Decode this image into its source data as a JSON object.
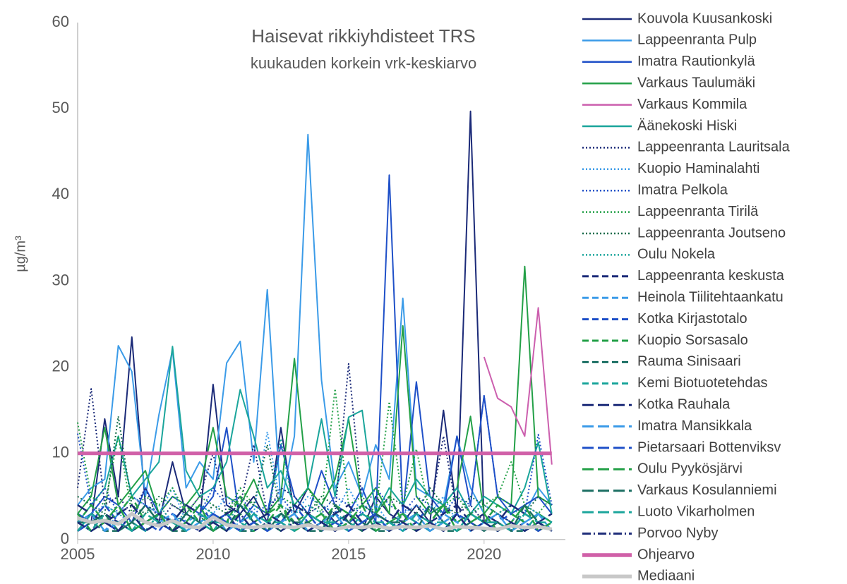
{
  "chart_data": {
    "type": "line",
    "title": "Haisevat rikkiyhdisteet TRS",
    "subtitle": "kuukauden korkein vrk-keskiarvo",
    "y_label": "µg/m³",
    "xlim": [
      2005,
      2023
    ],
    "xticks": [
      2005,
      2010,
      2015,
      2020
    ],
    "ylim": [
      0,
      60
    ],
    "yticks": [
      0,
      10,
      20,
      30,
      40,
      50,
      60
    ],
    "grid": false,
    "legend": "right",
    "x": [
      2005,
      2005.5,
      2006,
      2006.5,
      2007,
      2007.5,
      2008,
      2008.5,
      2009,
      2009.5,
      2010,
      2010.5,
      2011,
      2011.5,
      2012,
      2012.5,
      2013,
      2013.5,
      2014,
      2014.5,
      2015,
      2015.5,
      2016,
      2016.5,
      2017,
      2017.5,
      2018,
      2018.5,
      2019,
      2019.5,
      2020,
      2020.5,
      2021,
      2021.5,
      2022,
      2022.5
    ],
    "series": [
      {
        "name": "Kouvola Kuusankoski",
        "color": "#1b2a78",
        "style": "solid",
        "values": [
          3,
          2,
          14,
          5,
          23.5,
          4,
          2,
          9,
          3,
          2,
          18,
          4,
          3,
          5,
          2,
          13,
          3,
          6,
          4,
          2,
          3,
          1,
          5,
          3,
          2,
          4,
          2,
          15,
          3,
          49.7,
          2,
          3,
          2,
          1,
          2,
          1
        ]
      },
      {
        "name": "Lappeenranta Pulp",
        "color": "#3b9be8",
        "style": "solid",
        "values": [
          4,
          6,
          7,
          22.5,
          19.5,
          5,
          14.5,
          22,
          6,
          9,
          7,
          20.5,
          23,
          9,
          29,
          4,
          12,
          47,
          18.5,
          6,
          9,
          5,
          11,
          7,
          28,
          6,
          5,
          4,
          12,
          6,
          3,
          5,
          4,
          3,
          6,
          4
        ]
      },
      {
        "name": "Imatra Rautionkylä",
        "color": "#1f50c8",
        "style": "solid",
        "values": [
          2,
          3,
          5,
          4,
          2,
          6,
          3,
          2,
          4,
          3,
          5,
          13,
          2,
          4,
          3,
          11,
          5,
          3,
          8,
          4,
          3,
          6,
          2,
          42.3,
          3,
          18.3,
          5,
          3,
          12,
          4,
          16.7,
          5,
          3,
          4,
          5,
          3
        ]
      },
      {
        "name": "Varkaus Taulumäki",
        "color": "#23a047",
        "style": "solid",
        "values": [
          3,
          5,
          13,
          4,
          6,
          8,
          3,
          5,
          4,
          6,
          13,
          5,
          4,
          7,
          3,
          5,
          21,
          6,
          4,
          7,
          14,
          4,
          6,
          3,
          24.8,
          5,
          3,
          4,
          6,
          14.3,
          3,
          5,
          4,
          31.7,
          5,
          4
        ]
      },
      {
        "name": "Varkaus Kommila",
        "color": "#cc5fae",
        "style": "solid",
        "values": [
          null,
          null,
          null,
          null,
          null,
          null,
          null,
          null,
          null,
          null,
          null,
          null,
          null,
          null,
          null,
          null,
          null,
          null,
          null,
          null,
          null,
          null,
          null,
          null,
          null,
          null,
          null,
          null,
          null,
          null,
          21.2,
          16.4,
          15.4,
          12,
          26.9,
          8.7
        ]
      },
      {
        "name": "Äänekoski Hiski",
        "color": "#1aa59b",
        "style": "solid",
        "values": [
          2,
          4,
          6,
          12,
          5,
          7,
          9,
          22.4,
          8,
          5,
          6,
          9,
          17.4,
          12,
          6,
          8,
          4,
          6,
          14,
          5,
          14.2,
          15,
          3,
          6,
          4,
          7,
          5,
          4,
          6,
          3,
          5,
          4,
          3,
          6,
          11.3,
          3
        ]
      },
      {
        "name": "Lappeenranta Lauritsala",
        "color": "#1b2a78",
        "style": "dotted",
        "values": [
          6,
          17.5,
          4,
          5,
          3,
          6,
          2,
          4,
          3,
          5,
          10,
          3,
          4,
          11,
          3,
          6,
          5,
          3,
          4,
          3,
          20.4,
          4,
          3,
          5,
          2,
          4,
          3,
          12,
          3,
          4,
          2,
          3,
          2,
          4,
          3,
          2
        ]
      },
      {
        "name": "Kuopio Haminalahti",
        "color": "#3b9be8",
        "style": "dotted",
        "values": [
          2,
          3,
          4,
          3,
          5,
          4,
          3,
          6,
          2,
          4,
          3,
          5,
          4,
          3,
          12.5,
          4,
          3,
          5,
          4,
          3,
          6,
          3,
          4,
          2,
          3,
          4,
          3,
          5,
          2,
          3,
          4,
          3,
          2,
          4,
          3,
          2
        ]
      },
      {
        "name": "Imatra Pelkola",
        "color": "#1f50c8",
        "style": "dotted",
        "values": [
          12.3,
          4,
          6,
          3,
          5,
          4,
          3,
          5,
          4,
          3,
          6,
          4,
          5,
          3,
          4,
          5,
          3,
          4,
          3,
          5,
          4,
          3,
          6,
          4,
          3,
          5,
          4,
          3,
          5,
          4,
          16.7,
          5,
          4,
          3,
          12.2,
          4
        ]
      },
      {
        "name": "Lappeenranta Tirilä",
        "color": "#23a047",
        "style": "dotted",
        "values": [
          13.6,
          5,
          4,
          12,
          3,
          5,
          4,
          6,
          3,
          5,
          4,
          3,
          6,
          4,
          3,
          5,
          4,
          6,
          3,
          17.5,
          4,
          5,
          3,
          16,
          4,
          10.5,
          3,
          4,
          5,
          3,
          4,
          5,
          9,
          4,
          3,
          5
        ]
      },
      {
        "name": "Lappeenranta Joutseno",
        "color": "#146b4a",
        "style": "dotted",
        "values": [
          5,
          4,
          3,
          14.3,
          4,
          3,
          5,
          4,
          3,
          2,
          4,
          3,
          5,
          4,
          11,
          3,
          4,
          3,
          5,
          4,
          3,
          4,
          3,
          5,
          4,
          3,
          6,
          4,
          3,
          5,
          4,
          3,
          4,
          3,
          5,
          4
        ]
      },
      {
        "name": "Oulu Nokela",
        "color": "#1aa59b",
        "style": "dotted",
        "values": [
          3,
          2,
          4,
          3,
          2,
          3,
          4,
          2,
          3,
          4,
          3,
          2,
          4,
          3,
          2,
          11.7,
          3,
          4,
          3,
          2,
          3,
          4,
          3,
          2,
          3,
          2,
          4,
          3,
          2,
          3,
          2,
          3,
          4,
          2,
          3,
          2
        ]
      },
      {
        "name": "Lappeenranta keskusta",
        "color": "#1b2a78",
        "style": "dashed",
        "values": [
          2,
          1,
          3,
          2,
          1,
          2,
          3,
          1,
          2,
          1,
          2,
          3,
          1,
          2,
          1,
          2,
          3,
          1,
          2,
          1,
          2,
          1,
          3,
          2,
          1,
          2,
          1,
          2,
          1,
          2,
          1,
          2,
          1,
          2,
          1,
          2
        ]
      },
      {
        "name": "Heinola Tiilitehtaankatu",
        "color": "#3b9be8",
        "style": "dashed",
        "values": [
          1,
          2,
          1,
          3,
          2,
          1,
          2,
          1,
          2,
          3,
          1,
          2,
          1,
          2,
          1,
          3,
          2,
          1,
          2,
          1,
          3,
          2,
          1,
          2,
          1,
          2,
          1,
          3,
          2,
          1,
          2,
          1,
          2,
          1,
          2,
          1
        ]
      },
      {
        "name": "Kotka Kirjastotalo",
        "color": "#1f50c8",
        "style": "dashed",
        "values": [
          3,
          2,
          4,
          2,
          3,
          2,
          1,
          3,
          2,
          4,
          2,
          3,
          1,
          2,
          3,
          2,
          4,
          2,
          1,
          3,
          2,
          3,
          2,
          1,
          3,
          2,
          4,
          2,
          3,
          2,
          1,
          2,
          3,
          2,
          1,
          2
        ]
      },
      {
        "name": "Kuopio Sorsasalo",
        "color": "#23a047",
        "style": "dashed",
        "values": [
          2,
          4,
          2,
          3,
          5,
          2,
          3,
          2,
          4,
          2,
          3,
          2,
          5,
          2,
          3,
          4,
          2,
          3,
          2,
          4,
          3,
          2,
          3,
          5,
          2,
          3,
          2,
          4,
          2,
          3,
          2,
          4,
          3,
          2,
          3,
          2
        ]
      },
      {
        "name": "Rauma Sinisaari",
        "color": "#1a6e62",
        "style": "dashed",
        "values": [
          1,
          2,
          1,
          1,
          2,
          1,
          2,
          1,
          1,
          2,
          1,
          2,
          1,
          1,
          2,
          1,
          2,
          1,
          1,
          2,
          1,
          2,
          1,
          1,
          2,
          1,
          2,
          1,
          1,
          2,
          1,
          2,
          1,
          1,
          2,
          1
        ]
      },
      {
        "name": "Kemi Biotuotetehdas",
        "color": "#1aa59b",
        "style": "dashed",
        "values": [
          2,
          1,
          3,
          1,
          2,
          1,
          3,
          2,
          1,
          2,
          1,
          3,
          2,
          1,
          2,
          3,
          1,
          2,
          1,
          3,
          2,
          1,
          2,
          1,
          3,
          2,
          1,
          2,
          1,
          3,
          2,
          1,
          2,
          1,
          3,
          2
        ]
      },
      {
        "name": "Kotka Rauhala",
        "color": "#1b2a78",
        "style": "longdash",
        "values": [
          4,
          3,
          2,
          3,
          4,
          2,
          3,
          2,
          4,
          3,
          2,
          3,
          4,
          2,
          3,
          2,
          4,
          3,
          2,
          3,
          4,
          2,
          3,
          2,
          4,
          3,
          2,
          3,
          4,
          2,
          3,
          2,
          4,
          3,
          2,
          3
        ]
      },
      {
        "name": "Imatra Mansikkala",
        "color": "#3b9be8",
        "style": "longdash",
        "values": [
          2,
          3,
          1,
          2,
          3,
          1,
          2,
          3,
          1,
          2,
          3,
          1,
          2,
          3,
          1,
          2,
          3,
          1,
          2,
          3,
          1,
          2,
          3,
          1,
          2,
          3,
          1,
          2,
          3,
          1,
          2,
          3,
          1,
          2,
          3,
          1
        ]
      },
      {
        "name": "Pietarsaari Bottenviksv",
        "color": "#1f50c8",
        "style": "longdash",
        "values": [
          1,
          2,
          2,
          1,
          3,
          1,
          2,
          1,
          2,
          1,
          3,
          2,
          1,
          2,
          1,
          2,
          1,
          3,
          1,
          2,
          1,
          2,
          3,
          1,
          2,
          1,
          2,
          1,
          3,
          1,
          2,
          1,
          2,
          1,
          2,
          1
        ]
      },
      {
        "name": "Oulu Pyykösjärvi",
        "color": "#23a047",
        "style": "longdash",
        "values": [
          3,
          1,
          2,
          4,
          1,
          2,
          3,
          1,
          2,
          4,
          1,
          2,
          3,
          1,
          2,
          4,
          1,
          2,
          3,
          1,
          2,
          4,
          1,
          2,
          3,
          1,
          2,
          4,
          1,
          2,
          3,
          1,
          2,
          4,
          1,
          2
        ]
      },
      {
        "name": "Varkaus Kosulanniemi",
        "color": "#1a6e62",
        "style": "longdash",
        "values": [
          2,
          2,
          3,
          1,
          2,
          4,
          2,
          1,
          3,
          2,
          2,
          1,
          4,
          2,
          1,
          3,
          2,
          2,
          1,
          4,
          2,
          1,
          3,
          2,
          2,
          1,
          4,
          2,
          1,
          3,
          2,
          2,
          1,
          4,
          2,
          1
        ]
      },
      {
        "name": "Luoto Vikarholmen",
        "color": "#1aa59b",
        "style": "longdash",
        "values": [
          1,
          3,
          2,
          2,
          1,
          3,
          2,
          2,
          1,
          3,
          2,
          2,
          1,
          3,
          2,
          2,
          1,
          3,
          2,
          2,
          1,
          3,
          2,
          2,
          1,
          3,
          2,
          2,
          1,
          3,
          2,
          2,
          1,
          3,
          2,
          2
        ]
      },
      {
        "name": "Porvoo Nyby",
        "color": "#1b2a78",
        "style": "dashdot",
        "values": [
          2,
          1,
          2,
          1,
          3,
          1,
          2,
          1,
          2,
          1,
          2,
          1,
          3,
          1,
          2,
          1,
          2,
          1,
          2,
          1,
          3,
          1,
          2,
          1,
          2,
          1,
          2,
          1,
          3,
          1,
          2,
          1,
          2,
          1,
          2,
          1
        ]
      },
      {
        "name": "Ohjearvo",
        "color": "#d060a8",
        "style": "thick",
        "values": [
          10,
          10,
          10,
          10,
          10,
          10,
          10,
          10,
          10,
          10,
          10,
          10,
          10,
          10,
          10,
          10,
          10,
          10,
          10,
          10,
          10,
          10,
          10,
          10,
          10,
          10,
          10,
          10,
          10,
          10,
          10,
          10,
          10,
          10,
          10,
          10
        ]
      },
      {
        "name": "Mediaani",
        "color": "#c8c8c8",
        "style": "thick",
        "values": [
          2.5,
          2,
          2.2,
          1.8,
          3,
          2,
          1.6,
          2.2,
          1.5,
          1.4,
          2.6,
          1.7,
          1.5,
          1.4,
          1.6,
          1.5,
          1.4,
          1.7,
          1.3,
          1.2,
          1.5,
          1.4,
          1.6,
          1.3,
          1.5,
          1.4,
          1.6,
          1.2,
          1.5,
          1.4,
          1.3,
          1.2,
          1.6,
          1.4,
          1.5,
          1.2
        ]
      }
    ]
  }
}
